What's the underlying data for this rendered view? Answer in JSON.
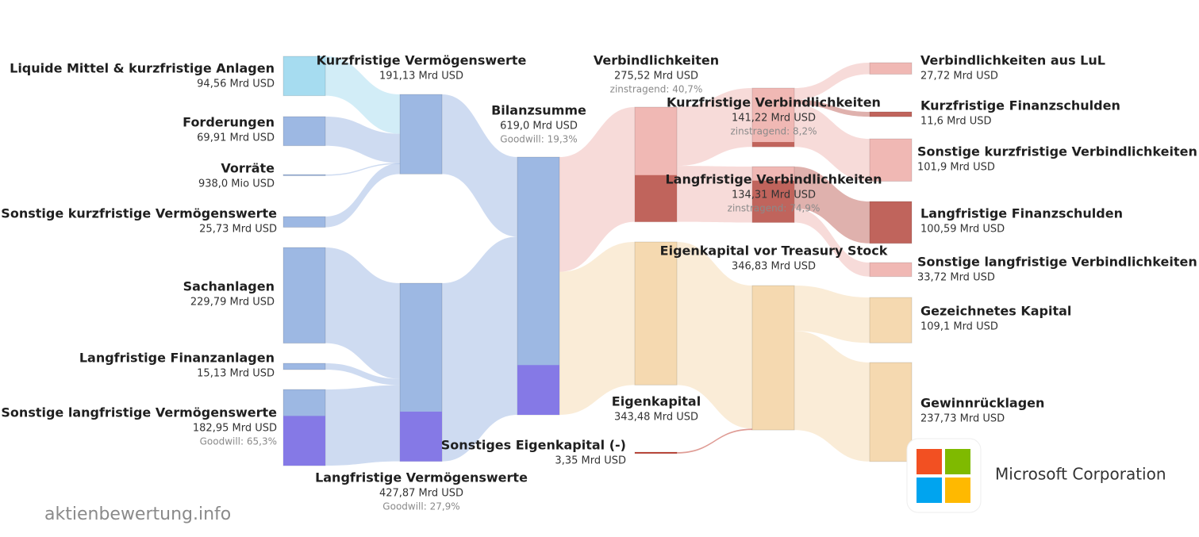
{
  "chart_data": {
    "type": "sankey",
    "watermark": "aktienbewertung.info",
    "company": "Microsoft Corporation",
    "nodes": [
      {
        "name": "Liquide Mittel & kurzfristige Anlagen",
        "value": 94.56,
        "value_label": "94,56 Mrd USD",
        "color": "#a6dcf0"
      },
      {
        "name": "Forderungen",
        "value": 69.91,
        "value_label": "69,91 Mrd USD",
        "color": "#9db8e3"
      },
      {
        "name": "Vorräte",
        "value": 0.938,
        "value_label": "938,0 Mio USD",
        "color": "#9db8e3"
      },
      {
        "name": "Sonstige kurzfristige Vermögenswerte",
        "value": 25.73,
        "value_label": "25,73 Mrd USD",
        "color": "#9db8e3"
      },
      {
        "name": "Sachanlagen",
        "value": 229.79,
        "value_label": "229,79 Mrd USD",
        "color": "#9db8e3"
      },
      {
        "name": "Langfristige Finanzanlagen",
        "value": 15.13,
        "value_label": "15,13 Mrd USD",
        "color": "#9db8e3"
      },
      {
        "name": "Sonstige langfristige Vermögenswerte",
        "value": 182.95,
        "value_label": "182,95 Mrd USD",
        "color": "#9db8e3",
        "share": 65.3,
        "share_label": "Goodwill: 65,3%",
        "share_color": "#8579e6"
      },
      {
        "name": "Kurzfristige Vermögenswerte",
        "value": 191.13,
        "value_label": "191,13 Mrd USD",
        "color": "#9db8e3"
      },
      {
        "name": "Langfristige Vermögenswerte",
        "value": 427.87,
        "value_label": "427,87 Mrd USD",
        "color": "#9db8e3",
        "share": 27.9,
        "share_label": "Goodwill: 27,9%",
        "share_color": "#8579e6"
      },
      {
        "name": "Bilanzsumme",
        "value": 619.0,
        "value_label": "619,0 Mrd USD",
        "color": "#9db8e3",
        "share": 19.3,
        "share_label": "Goodwill: 19,3%",
        "share_color": "#8579e6"
      },
      {
        "name": "Verbindlichkeiten",
        "value": 275.52,
        "value_label": "275,52 Mrd USD",
        "color": "#f0b8b4",
        "share": 40.7,
        "share_label": "zinstragend: 40,7%",
        "share_color": "#c0645c"
      },
      {
        "name": "Eigenkapital",
        "value": 343.48,
        "value_label": "343,48 Mrd USD",
        "color": "#f5d9b0"
      },
      {
        "name": "Sonstiges Eigenkapital (-)",
        "value": 3.35,
        "value_label": "3,35 Mrd USD",
        "color": "#c0392b"
      },
      {
        "name": "Kurzfristige Verbindlichkeiten",
        "value": 141.22,
        "value_label": "141,22 Mrd USD",
        "color": "#f0b8b4",
        "share": 8.2,
        "share_label": "zinstragend: 8,2%",
        "share_color": "#c0645c"
      },
      {
        "name": "Langfristige Verbindlichkeiten",
        "value": 134.31,
        "value_label": "134,31 Mrd USD",
        "color": "#f0b8b4",
        "share": 74.9,
        "share_label": "zinstragend: 74,9%",
        "share_color": "#c0645c"
      },
      {
        "name": "Eigenkapital vor Treasury Stock",
        "value": 346.83,
        "value_label": "346,83 Mrd USD",
        "color": "#f5d9b0"
      },
      {
        "name": "Verbindlichkeiten aus LuL",
        "value": 27.72,
        "value_label": "27,72 Mrd USD",
        "color": "#f0b8b4"
      },
      {
        "name": "Kurzfristige Finanzschulden",
        "value": 11.6,
        "value_label": "11,6 Mrd USD",
        "color": "#c0645c"
      },
      {
        "name": "Sonstige kurzfristige Verbindlichkeiten",
        "value": 101.9,
        "value_label": "101,9 Mrd USD",
        "color": "#f0b8b4"
      },
      {
        "name": "Langfristige Finanzschulden",
        "value": 100.59,
        "value_label": "100,59 Mrd USD",
        "color": "#c0645c"
      },
      {
        "name": "Sonstige langfristige Verbindlichkeiten",
        "value": 33.72,
        "value_label": "33,72 Mrd USD",
        "color": "#f0b8b4"
      },
      {
        "name": "Gezeichnetes Kapital",
        "value": 109.1,
        "value_label": "109,1 Mrd USD",
        "color": "#f5d9b0"
      },
      {
        "name": "Gewinnrücklagen",
        "value": 237.73,
        "value_label": "237,73 Mrd USD",
        "color": "#f5d9b0"
      }
    ],
    "links": [
      {
        "source": 0,
        "target": 7
      },
      {
        "source": 1,
        "target": 7
      },
      {
        "source": 2,
        "target": 7
      },
      {
        "source": 3,
        "target": 7
      },
      {
        "source": 4,
        "target": 8
      },
      {
        "source": 5,
        "target": 8
      },
      {
        "source": 6,
        "target": 8
      },
      {
        "source": 7,
        "target": 9
      },
      {
        "source": 8,
        "target": 9
      },
      {
        "source": 9,
        "target": 10
      },
      {
        "source": 9,
        "target": 11
      },
      {
        "source": 10,
        "target": 13
      },
      {
        "source": 10,
        "target": 14
      },
      {
        "source": 11,
        "target": 15
      },
      {
        "source": 12,
        "target": 15
      },
      {
        "source": 13,
        "target": 16
      },
      {
        "source": 13,
        "target": 17
      },
      {
        "source": 13,
        "target": 18
      },
      {
        "source": 14,
        "target": 19
      },
      {
        "source": 14,
        "target": 20
      },
      {
        "source": 15,
        "target": 21
      },
      {
        "source": 15,
        "target": 22
      }
    ]
  }
}
